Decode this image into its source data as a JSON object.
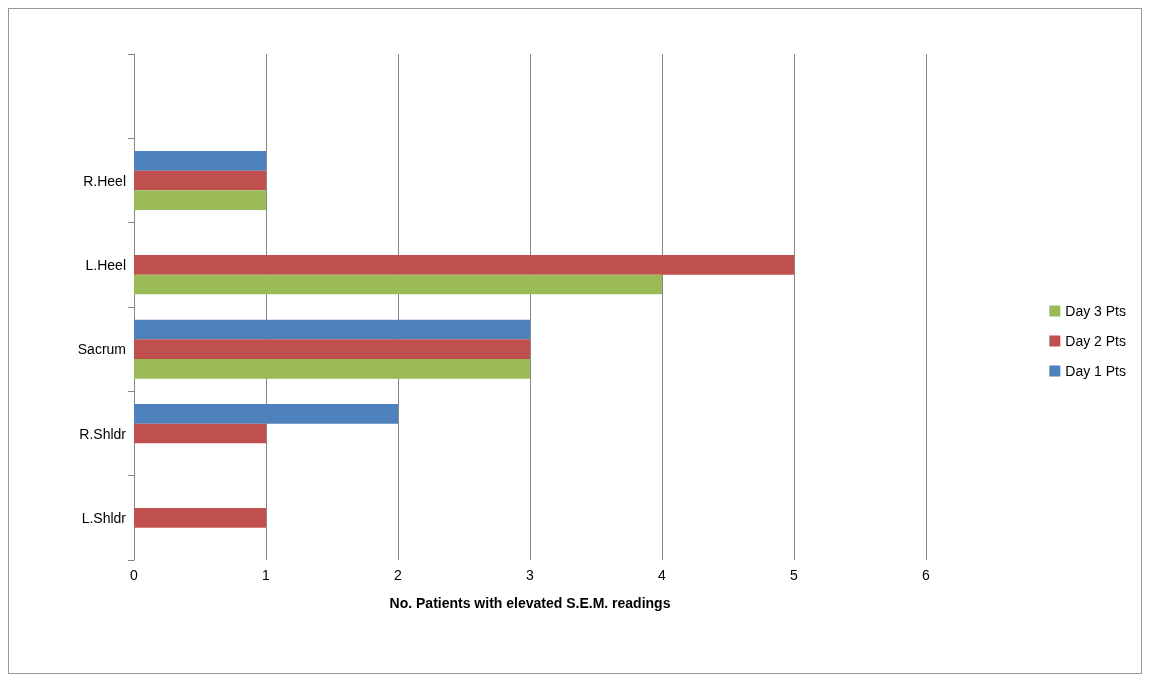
{
  "chart_data": {
    "type": "bar",
    "orientation": "horizontal",
    "xlabel": "No. Patients with elevated S.E.M. readings",
    "categories": [
      null,
      "R.Heel",
      "L.Heel",
      "Sacrum",
      "R.Shldr",
      "L.Shldr"
    ],
    "series": [
      {
        "name": "Day 1 Pts",
        "color": "#4f81bd",
        "values": [
          null,
          1,
          0,
          3,
          2,
          0
        ]
      },
      {
        "name": "Day 2 Pts",
        "color": "#c0504d",
        "values": [
          null,
          1,
          5,
          3,
          1,
          1
        ]
      },
      {
        "name": "Day 3 Pts",
        "color": "#9bbb59",
        "values": [
          null,
          1,
          4,
          3,
          0,
          0
        ]
      }
    ],
    "xlim": [
      0,
      6
    ],
    "xticks": [
      0,
      1,
      2,
      3,
      4,
      5,
      6
    ],
    "grid": "x",
    "legend": "right"
  }
}
